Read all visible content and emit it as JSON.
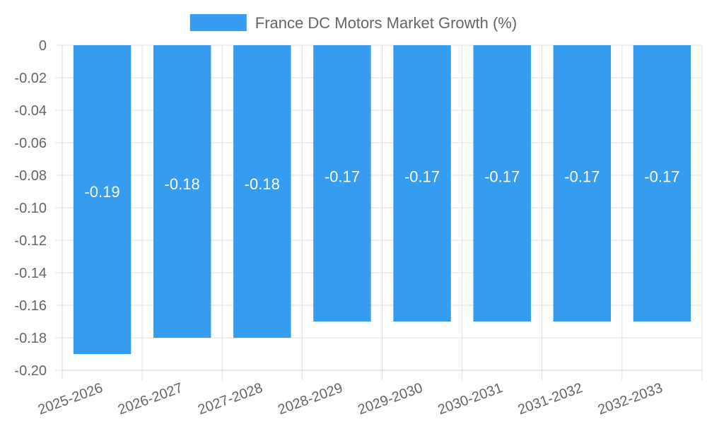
{
  "chart_data": {
    "type": "bar",
    "title": "",
    "xlabel": "",
    "ylabel": "",
    "categories": [
      "2025-2026",
      "2026-2027",
      "2027-2028",
      "2028-2029",
      "2029-2030",
      "2030-2031",
      "2031-2032",
      "2032-2033"
    ],
    "series": [
      {
        "name": "France DC Motors Market Growth (%)",
        "values": [
          -0.19,
          -0.18,
          -0.18,
          -0.17,
          -0.17,
          -0.17,
          -0.17,
          -0.17
        ],
        "color": "#369cf0"
      }
    ],
    "data_labels": [
      "-0.19",
      "-0.18",
      "-0.18",
      "-0.17",
      "-0.17",
      "-0.17",
      "-0.17",
      "-0.17"
    ],
    "ylim": [
      -0.2,
      0
    ],
    "y_ticks": [
      0,
      -0.02,
      -0.04,
      -0.06,
      -0.08,
      -0.1,
      -0.12,
      -0.14,
      -0.16,
      -0.18,
      -0.2
    ],
    "y_tick_labels": [
      "0",
      "-0.02",
      "-0.04",
      "-0.06",
      "-0.08",
      "-0.10",
      "-0.12",
      "-0.14",
      "-0.16",
      "-0.18",
      "-0.20"
    ],
    "grid": true,
    "legend_position": "top-center"
  }
}
